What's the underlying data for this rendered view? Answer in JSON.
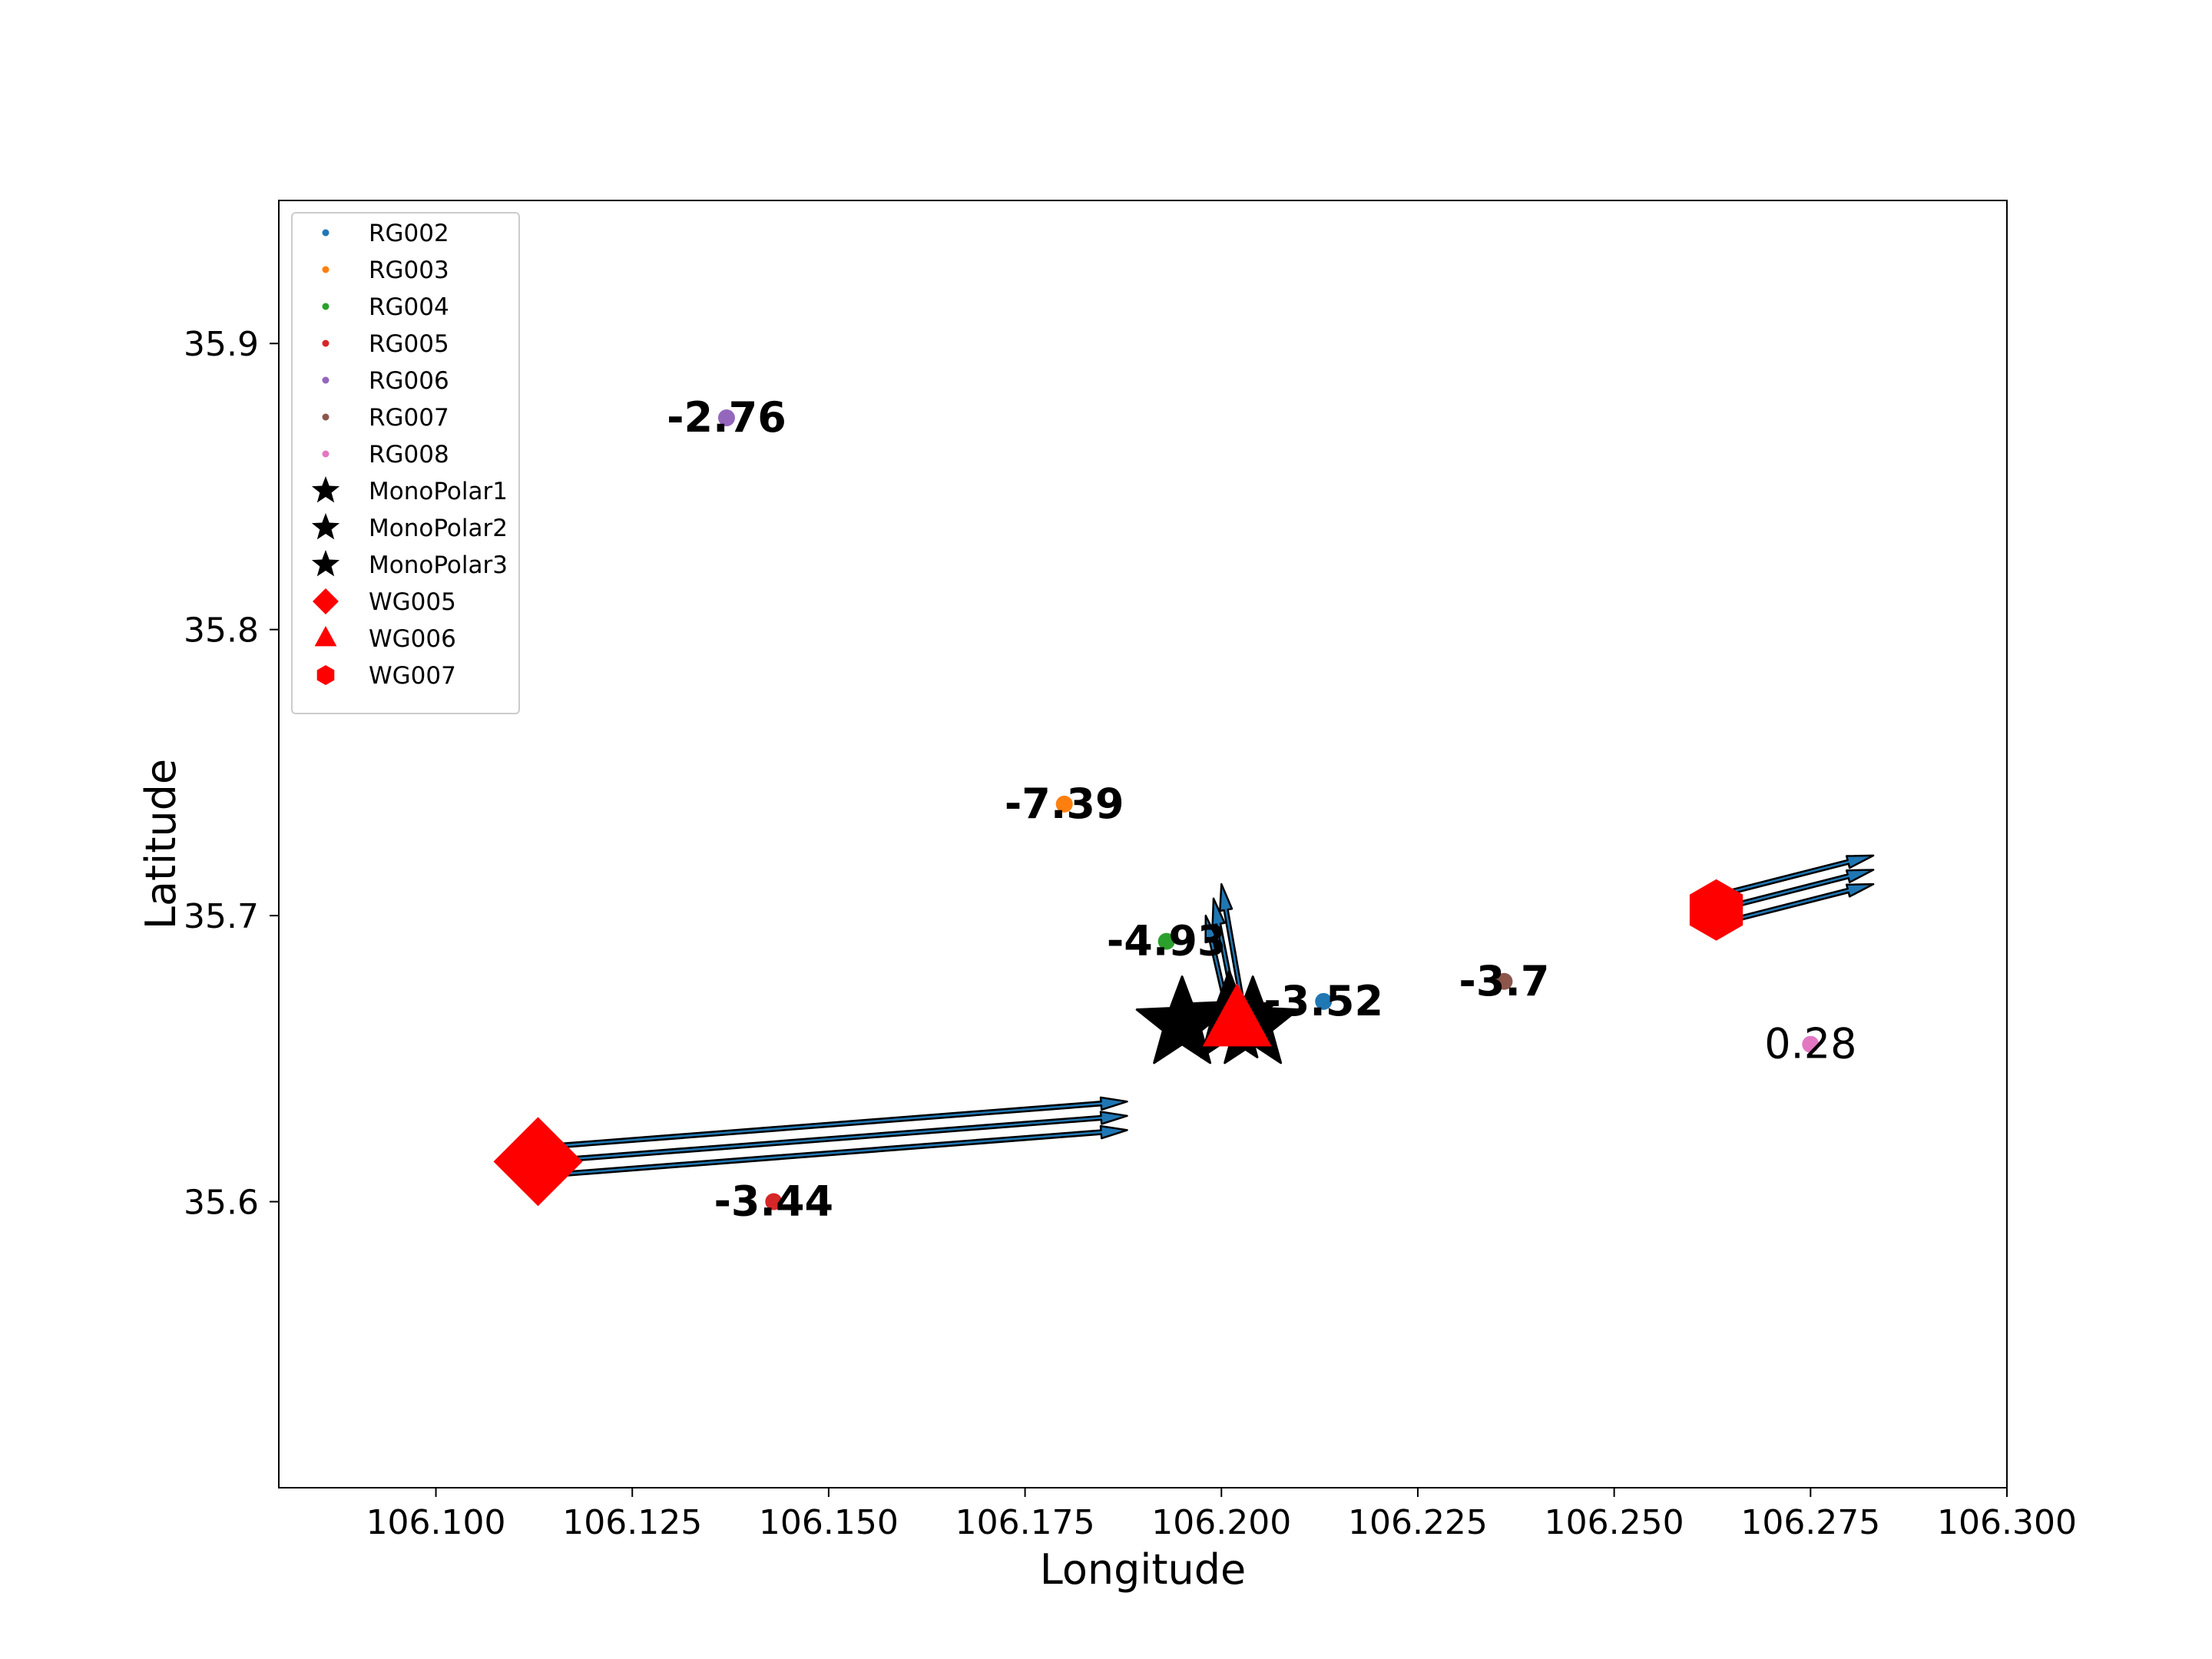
{
  "chart_data": {
    "type": "scatter",
    "title": "",
    "xlabel": "Longitude",
    "ylabel": "Latitude",
    "xlim": [
      106.08,
      106.3
    ],
    "ylim": [
      35.5,
      35.95
    ],
    "xticks": [
      106.1,
      106.125,
      106.15,
      106.175,
      106.2,
      106.225,
      106.25,
      106.275,
      106.3
    ],
    "xtick_labels": [
      "106.100",
      "106.125",
      "106.150",
      "106.175",
      "106.200",
      "106.225",
      "106.250",
      "106.275",
      "106.300"
    ],
    "yticks": [
      35.6,
      35.7,
      35.8,
      35.9
    ],
    "ytick_labels": [
      "35.6",
      "35.7",
      "35.8",
      "35.9"
    ],
    "grid": false,
    "legend_position": "top-left",
    "points": [
      {
        "name": "RG002",
        "marker": "dot",
        "color": "#1f77b4",
        "x": 106.213,
        "y": 35.67,
        "label": "-3.52",
        "bold": true
      },
      {
        "name": "RG003",
        "marker": "dot",
        "color": "#ff7f0e",
        "x": 106.18,
        "y": 35.739,
        "label": "-7.39",
        "bold": true
      },
      {
        "name": "RG004",
        "marker": "dot",
        "color": "#2ca02c",
        "x": 106.193,
        "y": 35.691,
        "label": "-4.93",
        "bold": true
      },
      {
        "name": "RG005",
        "marker": "dot",
        "color": "#d62728",
        "x": 106.143,
        "y": 35.6,
        "label": "-3.44",
        "bold": true
      },
      {
        "name": "RG006",
        "marker": "dot",
        "color": "#9467bd",
        "x": 106.137,
        "y": 35.874,
        "label": "-2.76",
        "bold": true
      },
      {
        "name": "RG007",
        "marker": "dot",
        "color": "#8c564b",
        "x": 106.236,
        "y": 35.677,
        "label": "-3.7",
        "bold": true
      },
      {
        "name": "RG008",
        "marker": "dot",
        "color": "#e377c2",
        "x": 106.275,
        "y": 35.655,
        "label": "0.28",
        "bold": false
      },
      {
        "name": "MonoPolar1",
        "marker": "star",
        "color": "#000000",
        "x": 106.195,
        "y": 35.662
      },
      {
        "name": "MonoPolar2",
        "marker": "star",
        "color": "#000000",
        "x": 106.204,
        "y": 35.662
      },
      {
        "name": "MonoPolar3",
        "marker": "star",
        "color": "#000000",
        "x": 106.201,
        "y": 35.664
      },
      {
        "name": "WG005",
        "marker": "diamond",
        "color": "#ff0000",
        "x": 106.113,
        "y": 35.614
      },
      {
        "name": "WG006",
        "marker": "triangle",
        "color": "#ff0000",
        "x": 106.202,
        "y": 35.663
      },
      {
        "name": "WG007",
        "marker": "hexagon",
        "color": "#ff0000",
        "x": 106.263,
        "y": 35.702
      }
    ],
    "vectors": [
      {
        "from": [
          106.113,
          35.619
        ],
        "to": [
          106.188,
          35.635
        ]
      },
      {
        "from": [
          106.113,
          35.614
        ],
        "to": [
          106.188,
          35.63
        ]
      },
      {
        "from": [
          106.113,
          35.609
        ],
        "to": [
          106.188,
          35.625
        ]
      },
      {
        "from": [
          106.201,
          35.664
        ],
        "to": [
          106.198,
          35.7
        ]
      },
      {
        "from": [
          106.202,
          35.664
        ],
        "to": [
          106.199,
          35.706
        ]
      },
      {
        "from": [
          106.203,
          35.664
        ],
        "to": [
          106.2,
          35.711
        ]
      },
      {
        "from": [
          106.263,
          35.707
        ],
        "to": [
          106.283,
          35.721
        ]
      },
      {
        "from": [
          106.263,
          35.702
        ],
        "to": [
          106.283,
          35.716
        ]
      },
      {
        "from": [
          106.263,
          35.697
        ],
        "to": [
          106.283,
          35.711
        ]
      }
    ],
    "vector_color": "#1f77b4",
    "legend": [
      {
        "label": "RG002",
        "marker": "dot",
        "color": "#1f77b4"
      },
      {
        "label": "RG003",
        "marker": "dot",
        "color": "#ff7f0e"
      },
      {
        "label": "RG004",
        "marker": "dot",
        "color": "#2ca02c"
      },
      {
        "label": "RG005",
        "marker": "dot",
        "color": "#d62728"
      },
      {
        "label": "RG006",
        "marker": "dot",
        "color": "#9467bd"
      },
      {
        "label": "RG007",
        "marker": "dot",
        "color": "#8c564b"
      },
      {
        "label": "RG008",
        "marker": "dot",
        "color": "#e377c2"
      },
      {
        "label": "MonoPolar1",
        "marker": "star",
        "color": "#000000"
      },
      {
        "label": "MonoPolar2",
        "marker": "star",
        "color": "#000000"
      },
      {
        "label": "MonoPolar3",
        "marker": "star",
        "color": "#000000"
      },
      {
        "label": "WG005",
        "marker": "diamond",
        "color": "#ff0000"
      },
      {
        "label": "WG006",
        "marker": "triangle",
        "color": "#ff0000"
      },
      {
        "label": "WG007",
        "marker": "hexagon",
        "color": "#ff0000"
      }
    ]
  }
}
